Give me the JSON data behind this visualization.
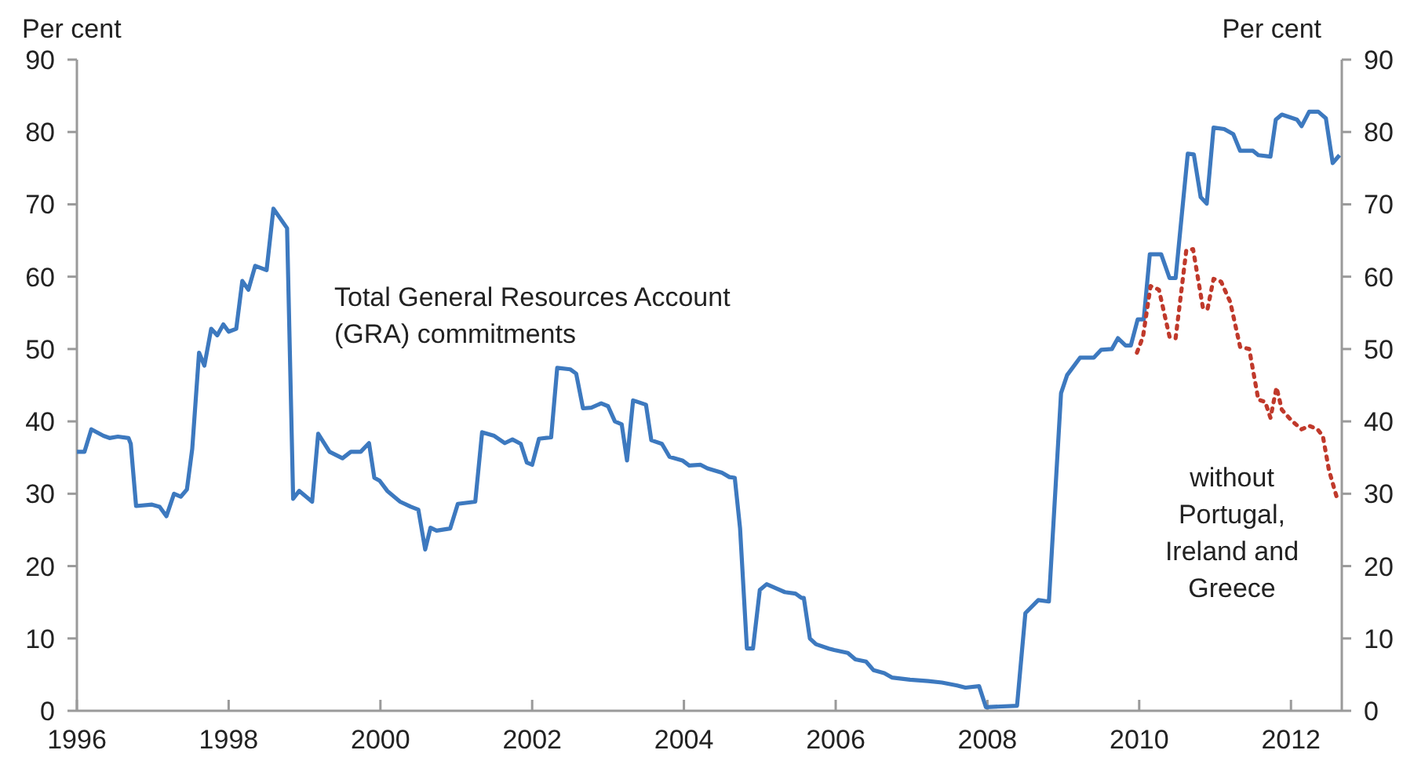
{
  "chart_data": {
    "type": "line",
    "ylabel": "Per cent",
    "y2label": "Per cent",
    "annotations": [
      "Total General Resources Account\n(GRA) commitments",
      "without\nPortugal,\nIreland and\nGreece"
    ],
    "xlim": [
      1996,
      2012.67
    ],
    "ylim": [
      0,
      90
    ],
    "y2lim": [
      0,
      90
    ],
    "yticks": [
      0,
      10,
      20,
      30,
      40,
      50,
      60,
      70,
      80,
      90
    ],
    "y2ticks": [
      0,
      10,
      20,
      30,
      40,
      50,
      60,
      70,
      80,
      90
    ],
    "xticks": [
      {
        "value": 1996,
        "label": "1996"
      },
      {
        "value": 1998,
        "label": "1998"
      },
      {
        "value": 2000,
        "label": "2000"
      },
      {
        "value": 2002,
        "label": "2002"
      },
      {
        "value": 2004,
        "label": "2004"
      },
      {
        "value": 2006,
        "label": "2006"
      },
      {
        "value": 2008,
        "label": "2008"
      },
      {
        "value": 2010,
        "label": "2010"
      },
      {
        "value": 2012,
        "label": "2012"
      }
    ],
    "grid": false,
    "marker": "none",
    "series": [
      {
        "color": "#3d79bf",
        "line_style": "solid",
        "x": [
          1996.0,
          1996.1,
          1996.19,
          1996.35,
          1996.43,
          1996.54,
          1996.68,
          1996.71,
          1996.78,
          1996.99,
          1997.09,
          1997.18,
          1997.28,
          1997.37,
          1997.45,
          1997.52,
          1997.61,
          1997.68,
          1997.77,
          1997.85,
          1997.93,
          1998.0,
          1998.1,
          1998.18,
          1998.26,
          1998.35,
          1998.5,
          1998.59,
          1998.77,
          1998.85,
          1998.93,
          1999.1,
          1999.18,
          1999.33,
          1999.5,
          1999.61,
          1999.74,
          1999.85,
          1999.92,
          1999.99,
          2000.09,
          2000.26,
          2000.4,
          2000.5,
          2000.59,
          2000.66,
          2000.74,
          2000.92,
          2001.02,
          2001.25,
          2001.34,
          2001.5,
          2001.64,
          2001.74,
          2001.85,
          2001.93,
          2002.0,
          2002.09,
          2002.25,
          2002.33,
          2002.5,
          2002.58,
          2002.67,
          2002.78,
          2002.91,
          2003.0,
          2003.09,
          2003.18,
          2003.25,
          2003.33,
          2003.5,
          2003.57,
          2003.71,
          2003.81,
          2003.98,
          2004.07,
          2004.22,
          2004.31,
          2004.5,
          2004.6,
          2004.67,
          2004.74,
          2004.83,
          2004.91,
          2005.0,
          2005.09,
          2005.22,
          2005.33,
          2005.47,
          2005.55,
          2005.58,
          2005.66,
          2005.74,
          2005.91,
          2005.98,
          2006.16,
          2006.26,
          2006.4,
          2006.5,
          2006.64,
          2006.74,
          2006.98,
          2007.22,
          2007.4,
          2007.6,
          2007.71,
          2007.89,
          2007.98,
          2008.39,
          2008.5,
          2008.67,
          2008.81,
          2008.97,
          2009.05,
          2009.22,
          2009.4,
          2009.5,
          2009.64,
          2009.72,
          2009.82,
          2009.89,
          2009.98,
          2010.06,
          2010.14,
          2010.29,
          2010.4,
          2010.48,
          2010.64,
          2010.72,
          2010.81,
          2010.89,
          2010.98,
          2011.12,
          2011.24,
          2011.33,
          2011.5,
          2011.57,
          2011.73,
          2011.8,
          2011.88,
          2012.08,
          2012.14,
          2012.24,
          2012.36,
          2012.46,
          2012.55,
          2012.64
        ],
        "values": [
          35.8,
          35.8,
          38.9,
          38.0,
          37.7,
          37.9,
          37.7,
          36.9,
          28.3,
          28.5,
          28.2,
          26.9,
          30.0,
          29.6,
          30.6,
          36.2,
          49.5,
          47.7,
          52.8,
          51.9,
          53.4,
          52.4,
          52.8,
          59.4,
          58.2,
          61.5,
          60.9,
          69.4,
          66.7,
          29.3,
          30.4,
          28.9,
          38.3,
          35.8,
          34.9,
          35.8,
          35.8,
          37.0,
          32.2,
          31.8,
          30.4,
          28.9,
          28.2,
          27.8,
          22.3,
          25.3,
          24.9,
          25.2,
          28.6,
          28.9,
          38.5,
          38.0,
          37.0,
          37.5,
          36.9,
          34.3,
          34.0,
          37.6,
          37.8,
          47.4,
          47.2,
          46.6,
          41.8,
          41.9,
          42.5,
          42.1,
          40.0,
          39.6,
          34.6,
          42.9,
          42.3,
          37.4,
          36.9,
          35.1,
          34.6,
          33.9,
          34.0,
          33.5,
          32.9,
          32.3,
          32.2,
          25.2,
          8.6,
          8.6,
          16.7,
          17.5,
          16.9,
          16.4,
          16.2,
          15.6,
          15.6,
          10.0,
          9.2,
          8.6,
          8.4,
          8.0,
          7.1,
          6.8,
          5.6,
          5.2,
          4.6,
          4.3,
          4.1,
          3.9,
          3.5,
          3.2,
          3.4,
          0.5,
          0.7,
          13.5,
          15.3,
          15.1,
          43.9,
          46.4,
          48.8,
          48.8,
          49.9,
          50.0,
          51.5,
          50.5,
          50.5,
          54.1,
          54.1,
          63.1,
          63.1,
          59.8,
          59.8,
          77.0,
          76.9,
          71.0,
          70.1,
          80.6,
          80.4,
          79.7,
          77.4,
          77.4,
          76.8,
          76.6,
          81.7,
          82.4,
          81.7,
          80.8,
          82.8,
          82.8,
          81.9,
          75.7,
          76.8
        ]
      },
      {
        "color": "#c0392b",
        "line_style": "dotted",
        "x": [
          2009.97,
          2010.05,
          2010.15,
          2010.26,
          2010.4,
          2010.48,
          2010.62,
          2010.71,
          2010.84,
          2010.9,
          2010.98,
          2011.08,
          2011.2,
          2011.33,
          2011.45,
          2011.57,
          2011.66,
          2011.73,
          2011.81,
          2011.88,
          2012.01,
          2012.14,
          2012.24,
          2012.35,
          2012.42,
          2012.5,
          2012.62
        ],
        "values": [
          49.5,
          51.7,
          58.7,
          58.2,
          51.7,
          51.5,
          63.6,
          63.8,
          55.7,
          55.5,
          59.7,
          59.3,
          56.5,
          50.3,
          50.0,
          43.0,
          42.7,
          40.5,
          44.7,
          41.6,
          40.1,
          38.9,
          39.4,
          38.9,
          38.0,
          33.3,
          28.9
        ]
      }
    ]
  }
}
